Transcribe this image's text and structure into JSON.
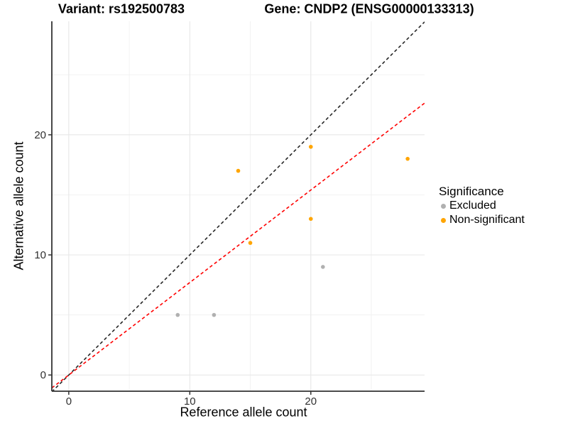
{
  "chart_data": {
    "type": "scatter",
    "title_variant": "Variant: rs192500783",
    "title_gene": "Gene: CNDP2 (ENSG00000133313)",
    "xlabel": "Reference allele count",
    "ylabel": "Alternative allele count",
    "xlim": [
      -1.4,
      29.4
    ],
    "ylim": [
      -1.35,
      29.45
    ],
    "x_major_ticks": [
      0,
      10,
      20
    ],
    "x_minor_ticks": [
      5,
      15,
      25
    ],
    "y_major_ticks": [
      0,
      10,
      20
    ],
    "y_minor_ticks": [
      5,
      15,
      25
    ],
    "grid": true,
    "colors": {
      "major_grid": "#e7e7e7",
      "minor_grid": "#f1f1f1",
      "axis_line": "#333333",
      "excluded": "#b0b0b0",
      "non_significant": "#ffa500",
      "identity_line": "#262626",
      "fit_line": "#ff0000"
    },
    "series": [
      {
        "name": "Excluded",
        "color": "#b0b0b0",
        "points": [
          [
            9,
            5
          ],
          [
            12,
            5
          ],
          [
            21,
            9
          ]
        ]
      },
      {
        "name": "Non-significant",
        "color": "#ffa500",
        "points": [
          [
            14,
            17
          ],
          [
            15,
            11
          ],
          [
            20,
            13
          ],
          [
            20,
            19
          ],
          [
            28,
            18
          ]
        ]
      }
    ],
    "lines": [
      {
        "name": "identity-line",
        "color": "#262626",
        "style": "dashed",
        "slope": 1,
        "intercept": 0
      },
      {
        "name": "fit-line",
        "color": "#ff0000",
        "style": "dashed",
        "slope": 0.77,
        "intercept": 0
      }
    ],
    "legend": {
      "title": "Significance",
      "position": "right",
      "items": [
        {
          "label": "Excluded",
          "color": "#b0b0b0"
        },
        {
          "label": "Non-significant",
          "color": "#ffa500"
        }
      ]
    }
  }
}
